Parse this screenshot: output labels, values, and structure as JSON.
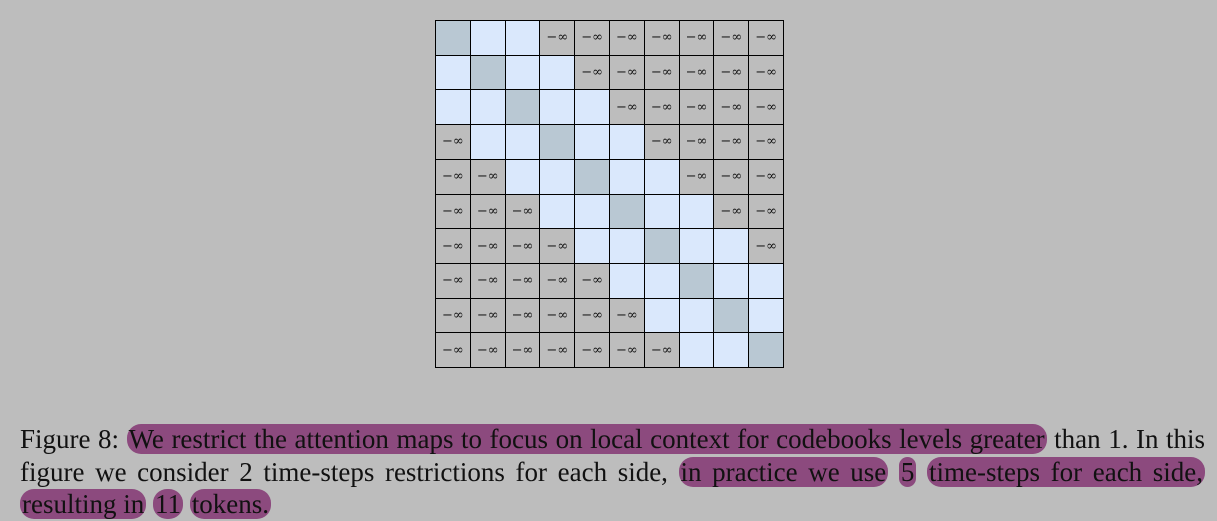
{
  "figure": {
    "mask_symbol": "−∞",
    "matrix_size": 10,
    "window": 2,
    "colors": {
      "background": "#bdbdbd",
      "allowed": "#dae8fc",
      "diagonal": "#b9c8d3",
      "masked": "#bdbdbd",
      "highlight": "#8c4a7e"
    }
  },
  "caption": {
    "label": "Figure 8:",
    "hl_1": "We restrict the attention maps to focus on local context for codebooks levels greater",
    "text_2": " than 1. In this figure we consider 2 time-steps restrictions for each side, ",
    "hl_2": "in practice we use",
    "text_3": " ",
    "hl_3": "5",
    "text_4": " ",
    "hl_4": "time-steps for each side, resulting in",
    "text_5": " ",
    "hl_5": "11",
    "text_6": " ",
    "hl_6": "tokens."
  }
}
